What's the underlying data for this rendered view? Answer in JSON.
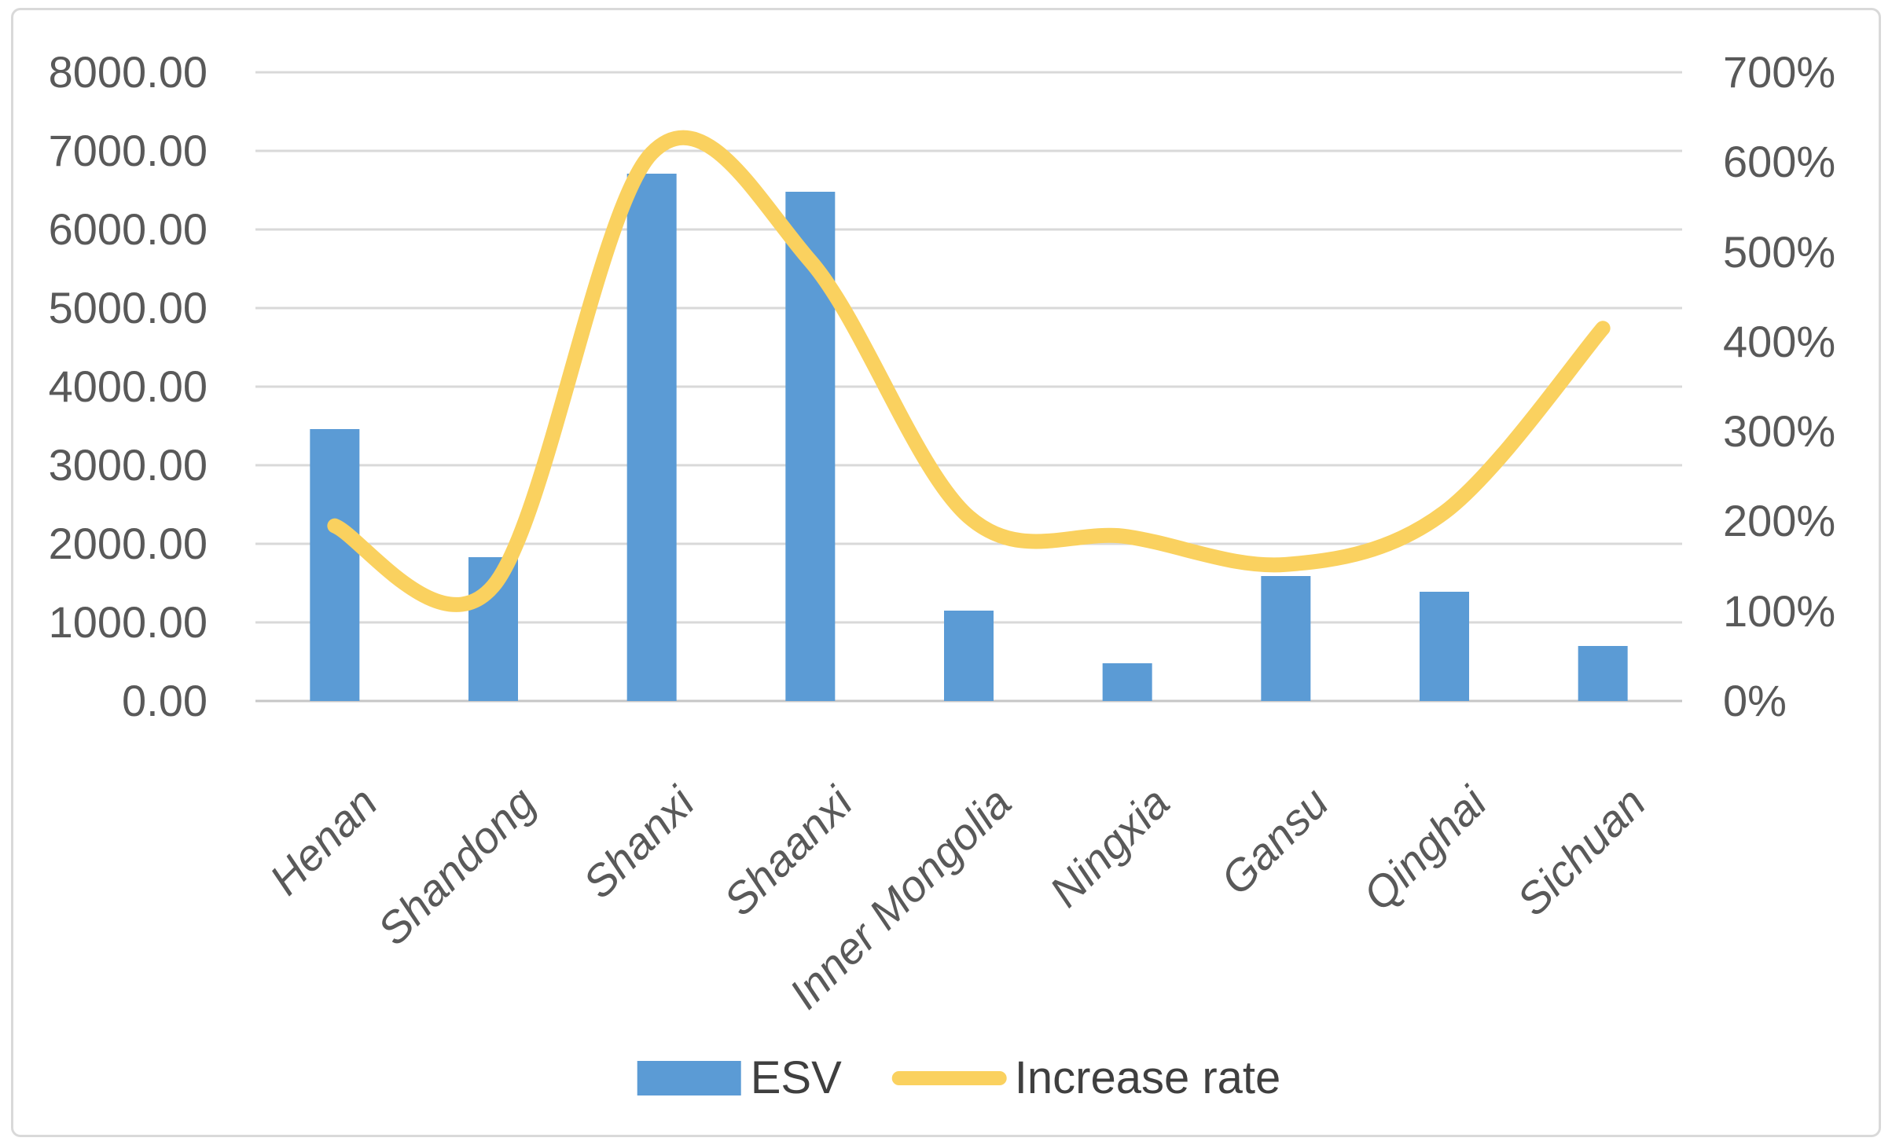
{
  "chart_data": {
    "type": "combo",
    "subtype": [
      "bar",
      "line"
    ],
    "title": "",
    "categories": [
      "Henan",
      "Shandong",
      "Shanxi",
      "Shaanxi",
      "Inner Mongolia",
      "Ningxia",
      "Gansu",
      "Qinghai",
      "Sichuan"
    ],
    "series": [
      {
        "name": "ESV",
        "type": "bar",
        "axis": "left",
        "values": [
          3460,
          1830,
          6710,
          6480,
          1150,
          480,
          1590,
          1390,
          700
        ]
      },
      {
        "name": "Increase rate",
        "type": "line",
        "axis": "right",
        "unit": "%",
        "smooth": true,
        "values": [
          195,
          128,
          610,
          490,
          205,
          183,
          152,
          210,
          415
        ]
      }
    ],
    "left_axis": {
      "min": 0,
      "max": 8000,
      "step": 1000,
      "tick_labels": [
        "8000.00",
        "7000.00",
        "6000.00",
        "5000.00",
        "4000.00",
        "3000.00",
        "2000.00",
        "1000.00",
        "0.00"
      ]
    },
    "right_axis": {
      "min": 0,
      "max": 700,
      "step": 100,
      "tick_labels": [
        "700%",
        "600%",
        "500%",
        "400%",
        "300%",
        "200%",
        "100%",
        "0%"
      ]
    },
    "grid": true,
    "legend_position": "bottom"
  },
  "colors": {
    "bar": "#5b9bd5",
    "line": "#fad15f",
    "gridline": "#d9d9d9",
    "axis_line": "#c6c6c6",
    "tick_text": "#595959",
    "legend_text": "#3f3f3f",
    "frame_border": "#d9d9d9",
    "background": "#ffffff"
  }
}
